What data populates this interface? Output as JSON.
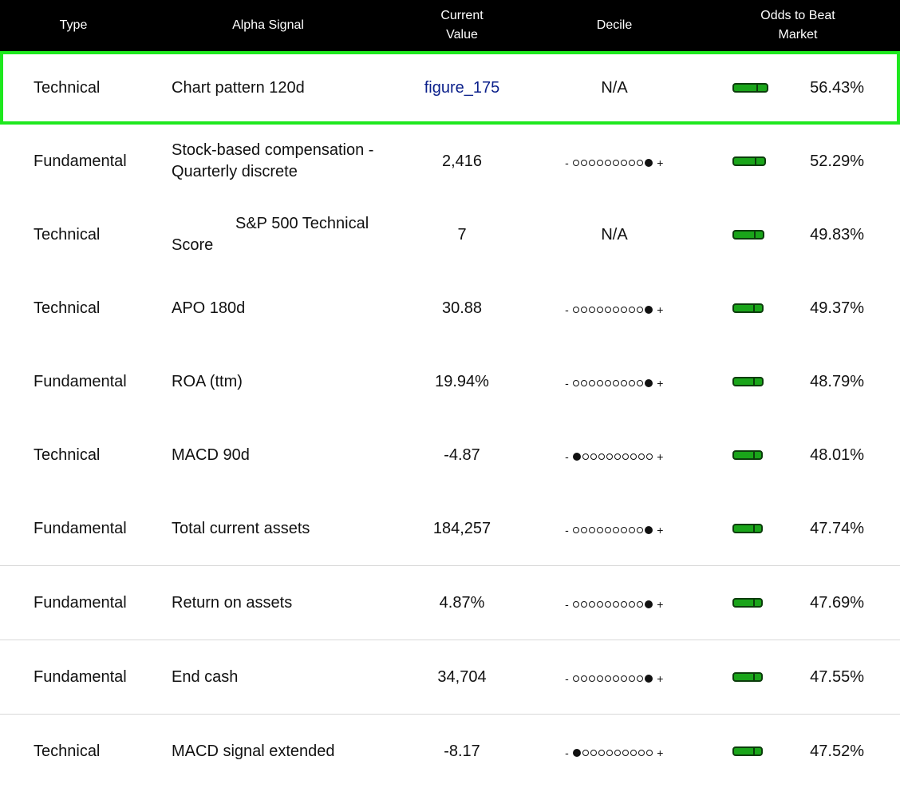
{
  "header": {
    "type": "Type",
    "alpha_signal": "Alpha Signal",
    "current_value_l1": "Current",
    "current_value_l2": "Value",
    "decile": "Decile",
    "odds_l1": "Odds to Beat",
    "odds_l2": "Market"
  },
  "decile_minus": "-",
  "decile_plus": "+",
  "colors": {
    "header_bg": "#000000",
    "highlight_border": "#1ee81e",
    "bar_fill": "#1aa51a",
    "link": "#0a1f8a"
  },
  "rows": [
    {
      "type": "Technical",
      "signal_l1": "Chart pattern 120d",
      "signal_l2": "",
      "value": "figure_175",
      "value_is_link": true,
      "decile": "N/A",
      "decile_pos": null,
      "odds": "56.43%",
      "odds_value": 56.43
    },
    {
      "type": "Fundamental",
      "signal_l1": "Stock-based compensation -",
      "signal_l2": "Quarterly discrete",
      "value": "2,416",
      "decile": "",
      "decile_pos": 10,
      "odds": "52.29%",
      "odds_value": 52.29
    },
    {
      "type": "Technical",
      "signal_l1": "S&P 500 Technical",
      "signal_l2": "Score",
      "value": "7",
      "decile": "N/A",
      "decile_pos": null,
      "odds": "49.83%",
      "odds_value": 49.83
    },
    {
      "type": "Technical",
      "signal_l1": "APO 180d",
      "signal_l2": "",
      "value": "30.88",
      "decile": "",
      "decile_pos": 10,
      "odds": "49.37%",
      "odds_value": 49.37
    },
    {
      "type": "Fundamental",
      "signal_l1": "ROA (ttm)",
      "signal_l2": "",
      "value": "19.94%",
      "decile": "",
      "decile_pos": 10,
      "odds": "48.79%",
      "odds_value": 48.79
    },
    {
      "type": "Technical",
      "signal_l1": "MACD 90d",
      "signal_l2": "",
      "value": "-4.87",
      "decile": "",
      "decile_pos": 1,
      "odds": "48.01%",
      "odds_value": 48.01
    },
    {
      "type": "Fundamental",
      "signal_l1": "Total current assets",
      "signal_l2": "",
      "value": "184,257",
      "decile": "",
      "decile_pos": 10,
      "odds": "47.74%",
      "odds_value": 47.74
    },
    {
      "type": "Fundamental",
      "signal_l1": "Return on assets",
      "signal_l2": "",
      "value": "4.87%",
      "decile": "",
      "decile_pos": 10,
      "odds": "47.69%",
      "odds_value": 47.69
    },
    {
      "type": "Fundamental",
      "signal_l1": "End cash",
      "signal_l2": "",
      "value": "34,704",
      "decile": "",
      "decile_pos": 10,
      "odds": "47.55%",
      "odds_value": 47.55
    },
    {
      "type": "Technical",
      "signal_l1": "MACD signal extended",
      "signal_l2": "",
      "value": "-8.17",
      "decile": "",
      "decile_pos": 1,
      "odds": "47.52%",
      "odds_value": 47.52
    }
  ]
}
